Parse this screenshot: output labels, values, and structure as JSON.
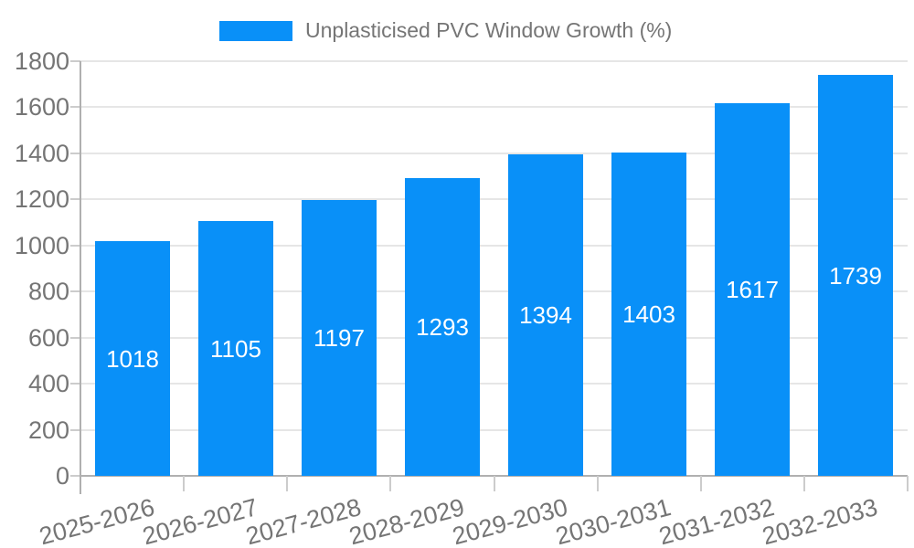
{
  "chart_data": {
    "type": "bar",
    "legend": {
      "label": "Unplasticised PVC Window Growth (%)",
      "position": "top-center"
    },
    "categories": [
      "2025-2026",
      "2026-2027",
      "2027-2028",
      "2028-2029",
      "2029-2030",
      "2030-2031",
      "2031-2032",
      "2032-2033"
    ],
    "values": [
      1018,
      1105,
      1197,
      1293,
      1394,
      1403,
      1617,
      1739
    ],
    "title": "",
    "xlabel": "",
    "ylabel": "",
    "ylim": [
      0,
      1800
    ],
    "yticks": [
      0,
      200,
      400,
      600,
      800,
      1000,
      1200,
      1400,
      1600,
      1800
    ],
    "grid": true,
    "value_label_style": "inside-center",
    "colors": {
      "bar": "#0990f8",
      "bar_value_text": "#ffffff",
      "axis_text": "#757575",
      "gridline": "#e6e6e6",
      "axis_line": "#b0b0b0",
      "tick": "#cccccc",
      "background": "#ffffff"
    }
  }
}
